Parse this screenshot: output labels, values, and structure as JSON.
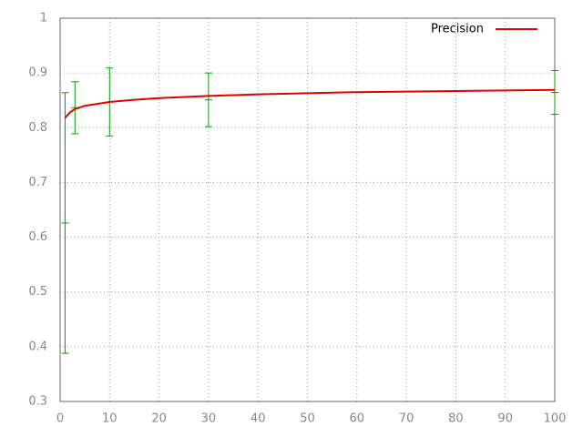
{
  "chart_data": {
    "type": "line",
    "series": [
      {
        "name": "Precision",
        "color": "#e00000",
        "x": [
          1,
          2,
          3,
          5,
          10,
          15,
          20,
          30,
          40,
          50,
          60,
          70,
          80,
          90,
          100
        ],
        "values": [
          0.818,
          0.828,
          0.834,
          0.84,
          0.847,
          0.851,
          0.854,
          0.858,
          0.861,
          0.863,
          0.865,
          0.866,
          0.867,
          0.868,
          0.869
        ]
      }
    ],
    "errorbars": {
      "color": "#00a000",
      "x": [
        1,
        3,
        10,
        30,
        100
      ],
      "values": [
        0.626,
        0.8365,
        0.847,
        0.851,
        0.8645
      ],
      "errors": [
        0.238,
        0.0475,
        0.062,
        0.049,
        0.04
      ]
    },
    "xlim": [
      0,
      100
    ],
    "xticks": [
      0,
      10,
      20,
      30,
      40,
      50,
      60,
      70,
      80,
      90,
      100
    ],
    "ylim": [
      0.3,
      1
    ],
    "yticks": [
      0.3,
      0.4,
      0.5,
      0.6,
      0.7,
      0.8,
      0.9,
      1
    ],
    "grid": true,
    "legend": "top-right"
  }
}
